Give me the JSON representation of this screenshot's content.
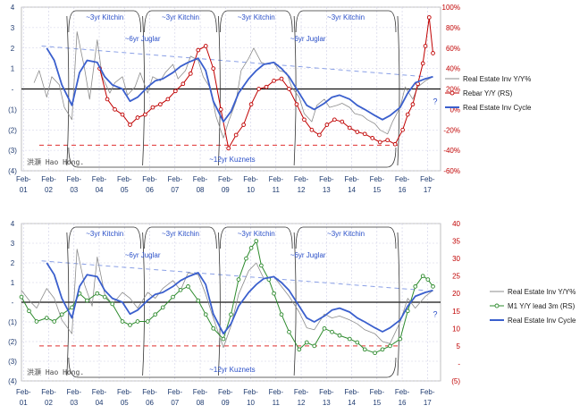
{
  "chart_data": [
    {
      "type": "line",
      "x_label_row1": [
        "Feb-",
        "Feb-",
        "Feb-",
        "Feb-",
        "Feb-",
        "Feb-",
        "Feb-",
        "Feb-",
        "Feb-",
        "Feb-",
        "Feb-",
        "Feb-",
        "Feb-",
        "Feb-",
        "Feb-",
        "Feb-",
        "Feb-"
      ],
      "x_label_row2": [
        "01",
        "02",
        "03",
        "04",
        "05",
        "06",
        "07",
        "08",
        "09",
        "10",
        "11",
        "12",
        "13",
        "14",
        "15",
        "16",
        "17"
      ],
      "y_left_ticks": [
        "4",
        "3",
        "2",
        "1",
        "-",
        "(1)",
        "(2)",
        "(3)",
        "(4)"
      ],
      "y_right_ticks": [
        "100%",
        "80%",
        "60%",
        "40%",
        "20%",
        "0%",
        "-20%",
        "-40%",
        "-60%"
      ],
      "ylim_left": [
        -4,
        4
      ],
      "ylim_right": [
        -60,
        100
      ],
      "grid": true,
      "kitchin_labels": [
        "~3yr Kitchin",
        "~3yr Kitchin",
        "~3yr Kitchin",
        "~3yr Kitchin"
      ],
      "juglar_labels": [
        "~6yr Juglar",
        "~6yr Juglar"
      ],
      "kuznets_label": "~12yr Kuznets",
      "watermark": "洪灝 Hao Hong.",
      "question_mark": "?",
      "series": [
        {
          "name": "Real Estate Inv Y/Y%",
          "axis": "left",
          "color": "#8c8c8c",
          "x": [
            2001.5,
            2001.7,
            2002.0,
            2002.2,
            2002.5,
            2002.7,
            2003.0,
            2003.2,
            2003.5,
            2003.7,
            2004.0,
            2004.2,
            2004.5,
            2004.7,
            2005.0,
            2005.2,
            2005.5,
            2005.7,
            2006.0,
            2006.2,
            2006.5,
            2006.7,
            2007.0,
            2007.2,
            2007.5,
            2007.7,
            2008.0,
            2008.2,
            2008.5,
            2008.7,
            2009.0,
            2009.2,
            2009.5,
            2009.7,
            2010.0,
            2010.2,
            2010.5,
            2010.7,
            2011.0,
            2011.2,
            2011.5,
            2011.7,
            2012.0,
            2012.2,
            2012.5,
            2012.7,
            2013.0,
            2013.2,
            2013.5,
            2013.7,
            2014.0,
            2014.2,
            2014.5,
            2014.7,
            2015.0,
            2015.2,
            2015.5,
            2015.7,
            2016.0,
            2016.2,
            2016.5,
            2016.7,
            2017.0,
            2017.3
          ],
          "values": [
            0.3,
            0.9,
            -0.4,
            0.6,
            0.2,
            -0.9,
            -1.5,
            2.8,
            1.0,
            -0.5,
            2.4,
            0.6,
            -0.2,
            0.3,
            0.6,
            -0.3,
            0.1,
            0.8,
            -0.2,
            0.6,
            0.4,
            0.8,
            1.2,
            0.5,
            0.9,
            1.6,
            1.4,
            0.6,
            0.0,
            -1.3,
            -2.4,
            -1.6,
            -0.6,
            0.9,
            1.5,
            2.0,
            1.3,
            1.2,
            1.3,
            0.9,
            0.8,
            0.1,
            -0.4,
            -1.2,
            -1.6,
            -0.8,
            -0.5,
            -0.9,
            -0.8,
            -0.7,
            -0.9,
            -1.2,
            -1.3,
            -1.5,
            -1.7,
            -2.0,
            -2.2,
            -1.6,
            -0.9,
            0.1,
            -0.5,
            0.1,
            0.4,
            0.6
          ]
        },
        {
          "name": "Rebar Y/Y (RS)",
          "axis": "right",
          "color": "#c00000",
          "x": [
            2004.1,
            2004.4,
            2004.7,
            2005.0,
            2005.3,
            2005.6,
            2005.9,
            2006.2,
            2006.5,
            2006.8,
            2007.1,
            2007.4,
            2007.7,
            2008.0,
            2008.3,
            2008.6,
            2008.9,
            2009.2,
            2009.5,
            2009.8,
            2010.1,
            2010.4,
            2010.7,
            2011.0,
            2011.3,
            2011.6,
            2011.9,
            2012.2,
            2012.5,
            2012.8,
            2013.1,
            2013.4,
            2013.7,
            2014.0,
            2014.3,
            2014.6,
            2014.9,
            2015.2,
            2015.5,
            2015.8,
            2016.1,
            2016.3,
            2016.5,
            2016.7,
            2016.9,
            2017.0,
            2017.15,
            2017.3
          ],
          "values": [
            40,
            10,
            0,
            -5,
            -15,
            -8,
            -5,
            2,
            5,
            10,
            18,
            25,
            35,
            58,
            62,
            40,
            0,
            -38,
            -25,
            -15,
            5,
            20,
            22,
            28,
            30,
            20,
            5,
            -10,
            -20,
            -25,
            -15,
            -10,
            -12,
            -18,
            -22,
            -24,
            -28,
            -32,
            -30,
            -34,
            -20,
            -5,
            5,
            25,
            45,
            62,
            90,
            55
          ]
        },
        {
          "name": "Real Estate Inv Cycle",
          "axis": "left",
          "color": "#3a5fcd",
          "x": [
            2002.0,
            2002.3,
            2002.6,
            2003.0,
            2003.3,
            2003.6,
            2004.0,
            2004.3,
            2004.6,
            2005.0,
            2005.3,
            2005.6,
            2006.0,
            2006.3,
            2006.6,
            2007.0,
            2007.3,
            2007.6,
            2008.0,
            2008.3,
            2008.6,
            2009.0,
            2009.3,
            2009.6,
            2010.0,
            2010.3,
            2010.6,
            2011.0,
            2011.3,
            2011.6,
            2012.0,
            2012.3,
            2012.6,
            2013.0,
            2013.3,
            2013.6,
            2014.0,
            2014.3,
            2014.6,
            2015.0,
            2015.3,
            2015.6,
            2016.0,
            2016.3,
            2016.6,
            2017.0,
            2017.3
          ],
          "values": [
            2.0,
            1.4,
            0.2,
            -0.8,
            0.8,
            1.4,
            1.3,
            0.6,
            0.2,
            0.0,
            -0.6,
            -0.4,
            0.1,
            0.4,
            0.5,
            0.8,
            1.1,
            1.3,
            1.5,
            0.9,
            -0.6,
            -1.6,
            -1.1,
            -0.2,
            0.5,
            0.9,
            1.2,
            1.3,
            1.0,
            0.6,
            -0.2,
            -0.8,
            -1.0,
            -0.7,
            -0.4,
            -0.3,
            -0.5,
            -0.8,
            -1.0,
            -1.3,
            -1.5,
            -1.3,
            -0.9,
            -0.2,
            0.3,
            0.5,
            0.6
          ]
        }
      ],
      "trend_line": {
        "x": [
          2001.8,
          2017.0
        ],
        "values": [
          2.1,
          0.6
        ]
      },
      "threshold_line": {
        "axis": "right",
        "value": -35
      },
      "kitchin_spans": [
        [
          2002.8,
          2005.8
        ],
        [
          2005.8,
          2008.8
        ],
        [
          2008.8,
          2011.8
        ],
        [
          2011.8,
          2015.9
        ]
      ],
      "juglar_spans": [
        [
          2002.8,
          2008.8
        ],
        [
          2008.8,
          2015.9
        ]
      ],
      "kuznets_span": [
        2002.8,
        2015.9
      ]
    },
    {
      "type": "line",
      "x_label_row1": [
        "Feb-",
        "Feb-",
        "Feb-",
        "Feb-",
        "Feb-",
        "Feb-",
        "Feb-",
        "Feb-",
        "Feb-",
        "Feb-",
        "Feb-",
        "Feb-",
        "Feb-",
        "Feb-",
        "Feb-",
        "Feb-",
        "Feb-"
      ],
      "x_label_row2": [
        "01",
        "02",
        "03",
        "04",
        "05",
        "06",
        "07",
        "08",
        "09",
        "10",
        "11",
        "12",
        "13",
        "14",
        "15",
        "16",
        "17"
      ],
      "y_left_ticks": [
        "4",
        "3",
        "2",
        "1",
        "-",
        "(1)",
        "(2)",
        "(3)",
        "(4)"
      ],
      "y_right_ticks": [
        "40",
        "35",
        "30",
        "25",
        "20",
        "15",
        "10",
        "5",
        "-",
        "(5)"
      ],
      "ylim_left": [
        -4,
        4
      ],
      "ylim_right": [
        -5,
        40
      ],
      "grid": true,
      "kitchin_labels": [
        "~3yr Kitchin",
        "~3yr Kitchin",
        "~3yr Kitchin",
        "~3yr Kitchin"
      ],
      "juglar_labels": [
        "~6yr Juglar",
        "~6yr Juglar"
      ],
      "kuznets_label": "~12yr Kuznets",
      "watermark": "洪灝 Hao Hong.",
      "question_mark": "?",
      "series": [
        {
          "name": "Real Estate Inv Y/Y%",
          "axis": "left",
          "color": "#8c8c8c",
          "x": [
            2001.0,
            2001.3,
            2001.6,
            2002.0,
            2002.3,
            2002.6,
            2003.0,
            2003.2,
            2003.5,
            2003.8,
            2004.0,
            2004.3,
            2004.6,
            2005.0,
            2005.3,
            2005.6,
            2006.0,
            2006.3,
            2006.6,
            2007.0,
            2007.3,
            2007.6,
            2008.0,
            2008.3,
            2008.6,
            2009.0,
            2009.3,
            2009.6,
            2010.0,
            2010.3,
            2010.6,
            2011.0,
            2011.3,
            2011.6,
            2012.0,
            2012.3,
            2012.6,
            2013.0,
            2013.3,
            2013.6,
            2014.0,
            2014.3,
            2014.6,
            2015.0,
            2015.3,
            2015.6,
            2016.0,
            2016.3,
            2016.6,
            2017.0,
            2017.3
          ],
          "values": [
            0.6,
            0.1,
            -0.3,
            0.7,
            0.2,
            -0.9,
            -1.6,
            2.7,
            0.9,
            -0.2,
            2.3,
            0.4,
            -0.1,
            0.5,
            0.2,
            -0.3,
            0.5,
            0.2,
            0.7,
            1.1,
            0.6,
            1.5,
            1.4,
            0.4,
            -0.8,
            -2.3,
            -1.2,
            0.4,
            1.6,
            2.0,
            1.2,
            1.3,
            0.8,
            0.3,
            -0.5,
            -1.3,
            -1.4,
            -0.6,
            -0.8,
            -0.7,
            -0.9,
            -1.1,
            -1.4,
            -1.6,
            -2.0,
            -2.1,
            -1.0,
            0.2,
            -0.3,
            0.3,
            0.6
          ]
        },
        {
          "name": "M1 Y/Y lead 3m (RS)",
          "axis": "right",
          "color": "#2e8b2e",
          "x": [
            2001.0,
            2001.3,
            2001.6,
            2002.0,
            2002.3,
            2002.6,
            2003.0,
            2003.3,
            2003.6,
            2004.0,
            2004.3,
            2004.6,
            2005.0,
            2005.3,
            2005.6,
            2006.0,
            2006.3,
            2006.6,
            2007.0,
            2007.3,
            2007.6,
            2008.0,
            2008.3,
            2008.6,
            2009.0,
            2009.3,
            2009.6,
            2009.9,
            2010.1,
            2010.3,
            2010.5,
            2010.8,
            2011.0,
            2011.3,
            2011.6,
            2012.0,
            2012.3,
            2012.6,
            2013.0,
            2013.3,
            2013.6,
            2014.0,
            2014.3,
            2014.6,
            2015.0,
            2015.3,
            2015.6,
            2016.0,
            2016.3,
            2016.6,
            2016.9,
            2017.1,
            2017.3
          ],
          "values": [
            19,
            15,
            12,
            13,
            12,
            14,
            16,
            20,
            18,
            20,
            19,
            17,
            12,
            11,
            12,
            12,
            14,
            16,
            19,
            21,
            22,
            18,
            14,
            10,
            7,
            14,
            24,
            30,
            33,
            35,
            28,
            24,
            20,
            14,
            9,
            4,
            6,
            5,
            10,
            9,
            8,
            7,
            6,
            4,
            3,
            4,
            5,
            7,
            15,
            22,
            25,
            24,
            22
          ]
        },
        {
          "name": "Real Estate Inv Cycle",
          "axis": "left",
          "color": "#3a5fcd",
          "x": [
            2002.0,
            2002.3,
            2002.6,
            2003.0,
            2003.3,
            2003.6,
            2004.0,
            2004.3,
            2004.6,
            2005.0,
            2005.3,
            2005.6,
            2006.0,
            2006.3,
            2006.6,
            2007.0,
            2007.3,
            2007.6,
            2008.0,
            2008.3,
            2008.6,
            2009.0,
            2009.3,
            2009.6,
            2010.0,
            2010.3,
            2010.6,
            2011.0,
            2011.3,
            2011.6,
            2012.0,
            2012.3,
            2012.6,
            2013.0,
            2013.3,
            2013.6,
            2014.0,
            2014.3,
            2014.6,
            2015.0,
            2015.3,
            2015.6,
            2016.0,
            2016.3,
            2016.6,
            2017.0,
            2017.3
          ],
          "values": [
            2.0,
            1.4,
            0.2,
            -0.8,
            0.8,
            1.4,
            1.3,
            0.6,
            0.2,
            0.0,
            -0.6,
            -0.4,
            0.1,
            0.4,
            0.5,
            0.8,
            1.1,
            1.3,
            1.5,
            0.9,
            -0.6,
            -1.6,
            -1.1,
            -0.2,
            0.5,
            0.9,
            1.2,
            1.3,
            1.0,
            0.6,
            -0.2,
            -0.8,
            -1.0,
            -0.7,
            -0.4,
            -0.3,
            -0.5,
            -0.8,
            -1.0,
            -1.3,
            -1.5,
            -1.3,
            -0.9,
            -0.2,
            0.3,
            0.5,
            0.6
          ]
        }
      ],
      "trend_line": {
        "x": [
          2001.8,
          2017.0
        ],
        "values": [
          2.1,
          0.6
        ]
      },
      "threshold_line": {
        "axis": "right",
        "value": 5
      },
      "kitchin_spans": [
        [
          2002.8,
          2005.8
        ],
        [
          2005.8,
          2008.8
        ],
        [
          2008.8,
          2011.8
        ],
        [
          2011.8,
          2015.9
        ]
      ],
      "juglar_spans": [
        [
          2002.8,
          2008.8
        ],
        [
          2008.8,
          2015.9
        ]
      ],
      "kuznets_span": [
        2002.8,
        2015.9
      ]
    }
  ]
}
